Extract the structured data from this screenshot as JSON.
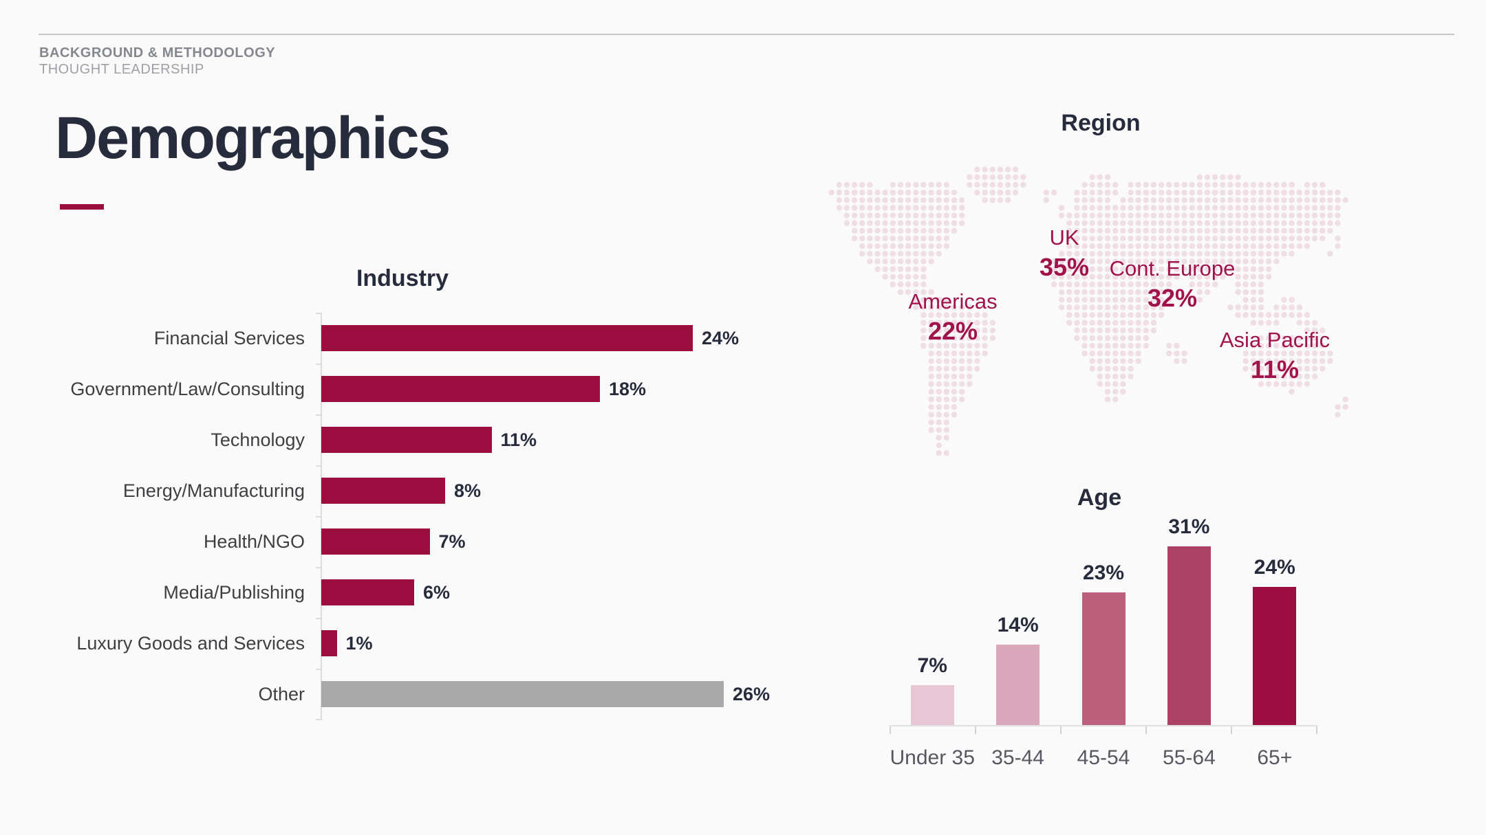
{
  "header": {
    "kicker": "BACKGROUND & METHODOLOGY",
    "subtitle": "THOUGHT LEADERSHIP",
    "title": "Demographics"
  },
  "colors": {
    "background": "#FAFAFA",
    "accent_crimson": "#9C0E40",
    "region_text_crimson": "#A0124A",
    "heading_navy": "#272C3D",
    "other_bar_gray": "#A9A9A9",
    "map_dot_pink": "#F0DEE5",
    "rule_gray": "#C7C8CA"
  },
  "industry": {
    "title": "Industry",
    "bars": [
      {
        "label": "Financial Services",
        "value": 24,
        "display": "24%",
        "color": "#9C0E40"
      },
      {
        "label": "Government/Law/Consulting",
        "value": 18,
        "display": "18%",
        "color": "#9C0E40"
      },
      {
        "label": "Technology",
        "value": 11,
        "display": "11%",
        "color": "#9C0E40"
      },
      {
        "label": "Energy/Manufacturing",
        "value": 8,
        "display": "8%",
        "color": "#9C0E40"
      },
      {
        "label": "Health/NGO",
        "value": 7,
        "display": "7%",
        "color": "#9C0E40"
      },
      {
        "label": "Media/Publishing",
        "value": 6,
        "display": "6%",
        "color": "#9C0E40"
      },
      {
        "label": "Luxury Goods and Services",
        "value": 1,
        "display": "1%",
        "color": "#9C0E40"
      },
      {
        "label": "Other",
        "value": 26,
        "display": "26%",
        "color": "#A9A9A9"
      }
    ]
  },
  "region": {
    "title": "Region",
    "labels": [
      {
        "name": "UK",
        "value": 35,
        "display": "35%"
      },
      {
        "name": "Americas",
        "value": 22,
        "display": "22%"
      },
      {
        "name": "Cont. Europe",
        "value": 32,
        "display": "32%"
      },
      {
        "name": "Asia Pacific",
        "value": 11,
        "display": "11%"
      }
    ],
    "map_rows": [
      [
        [
          19,
          24
        ]
      ],
      [
        [
          18,
          25
        ],
        [
          34,
          36
        ],
        [
          48,
          53
        ]
      ],
      [
        [
          1,
          5
        ],
        [
          8,
          15
        ],
        [
          18,
          25
        ],
        [
          33,
          37
        ],
        [
          39,
          60
        ],
        [
          62,
          64
        ]
      ],
      [
        [
          0,
          16
        ],
        [
          19,
          24
        ],
        [
          28,
          29
        ],
        [
          32,
          37
        ],
        [
          39,
          66
        ]
      ],
      [
        [
          1,
          17
        ],
        [
          20,
          23
        ],
        [
          28,
          28
        ],
        [
          32,
          36
        ],
        [
          38,
          67
        ]
      ],
      [
        [
          1,
          17
        ],
        [
          30,
          30
        ],
        [
          32,
          66
        ]
      ],
      [
        [
          2,
          17
        ],
        [
          30,
          66
        ]
      ],
      [
        [
          2,
          17
        ],
        [
          31,
          66
        ]
      ],
      [
        [
          3,
          16
        ],
        [
          31,
          65
        ]
      ],
      [
        [
          3,
          15
        ],
        [
          31,
          64
        ],
        [
          66,
          66
        ]
      ],
      [
        [
          4,
          15
        ],
        [
          31,
          62
        ],
        [
          66,
          66
        ]
      ],
      [
        [
          4,
          14
        ],
        [
          30,
          60
        ],
        [
          65,
          65
        ]
      ],
      [
        [
          5,
          13
        ],
        [
          29,
          58
        ]
      ],
      [
        [
          6,
          12
        ],
        [
          29,
          57
        ]
      ],
      [
        [
          7,
          12
        ],
        [
          29,
          45
        ],
        [
          47,
          51
        ],
        [
          53,
          57
        ]
      ],
      [
        [
          8,
          12
        ],
        [
          29,
          44
        ],
        [
          47,
          50
        ],
        [
          53,
          56
        ]
      ],
      [
        [
          9,
          13
        ],
        [
          30,
          44
        ],
        [
          48,
          49
        ],
        [
          53,
          56
        ]
      ],
      [
        [
          11,
          15
        ],
        [
          30,
          44
        ],
        [
          48,
          48
        ],
        [
          54,
          56
        ],
        [
          59,
          60
        ]
      ],
      [
        [
          11,
          18
        ],
        [
          30,
          43
        ],
        [
          52,
          56
        ],
        [
          58,
          61
        ]
      ],
      [
        [
          12,
          20
        ],
        [
          31,
          43
        ],
        [
          53,
          62
        ]
      ],
      [
        [
          12,
          21
        ],
        [
          31,
          42
        ],
        [
          55,
          58
        ],
        [
          61,
          63
        ]
      ],
      [
        [
          12,
          21
        ],
        [
          32,
          42
        ],
        [
          62,
          64
        ]
      ],
      [
        [
          12,
          21
        ],
        [
          32,
          41
        ],
        [
          56,
          63
        ]
      ],
      [
        [
          12,
          20
        ],
        [
          33,
          41
        ],
        [
          44,
          45
        ],
        [
          55,
          64
        ]
      ],
      [
        [
          13,
          20
        ],
        [
          33,
          40
        ],
        [
          44,
          46
        ],
        [
          54,
          65
        ]
      ],
      [
        [
          13,
          19
        ],
        [
          34,
          40
        ],
        [
          45,
          46
        ],
        [
          54,
          65
        ]
      ],
      [
        [
          13,
          19
        ],
        [
          34,
          39
        ],
        [
          54,
          64
        ]
      ],
      [
        [
          13,
          18
        ],
        [
          35,
          39
        ],
        [
          55,
          63
        ]
      ],
      [
        [
          13,
          18
        ],
        [
          35,
          38
        ],
        [
          56,
          62
        ]
      ],
      [
        [
          13,
          17
        ],
        [
          36,
          38
        ],
        [
          60,
          60
        ]
      ],
      [
        [
          13,
          17
        ],
        [
          36,
          37
        ],
        [
          67,
          67
        ]
      ],
      [
        [
          13,
          16
        ],
        [
          66,
          67
        ]
      ],
      [
        [
          13,
          16
        ],
        [
          66,
          66
        ]
      ],
      [
        [
          13,
          15
        ]
      ],
      [
        [
          13,
          15
        ]
      ],
      [
        [
          14,
          15
        ]
      ],
      [
        [
          14,
          14
        ]
      ],
      [
        [
          14,
          15
        ]
      ]
    ]
  },
  "age": {
    "title": "Age",
    "bars": [
      {
        "label": "Under 35",
        "value": 7,
        "display": "7%",
        "color": "#E7C7D3"
      },
      {
        "label": "35-44",
        "value": 14,
        "display": "14%",
        "color": "#D9A8BA"
      },
      {
        "label": "45-54",
        "value": 23,
        "display": "23%",
        "color": "#BC607E"
      },
      {
        "label": "55-64",
        "value": 31,
        "display": "31%",
        "color": "#AC4166"
      },
      {
        "label": "65+",
        "value": 24,
        "display": "24%",
        "color": "#9C0E40"
      }
    ]
  },
  "chart_data": [
    {
      "type": "bar",
      "orientation": "horizontal",
      "title": "Industry",
      "categories": [
        "Financial Services",
        "Government/Law/Consulting",
        "Technology",
        "Energy/Manufacturing",
        "Health/NGO",
        "Media/Publishing",
        "Luxury Goods and Services",
        "Other"
      ],
      "values": [
        24,
        18,
        11,
        8,
        7,
        6,
        1,
        26
      ],
      "data_labels": [
        "24%",
        "18%",
        "11%",
        "8%",
        "7%",
        "6%",
        "1%",
        "26%"
      ],
      "bar_colors": [
        "#9C0E40",
        "#9C0E40",
        "#9C0E40",
        "#9C0E40",
        "#9C0E40",
        "#9C0E40",
        "#9C0E40",
        "#A9A9A9"
      ],
      "xlabel": "",
      "ylabel": "",
      "xlim": [
        0,
        26
      ],
      "grid": false,
      "legend": false
    },
    {
      "type": "map",
      "title": "Region",
      "note": "percent labels placed over a dotted world map",
      "points": [
        {
          "label": "Americas",
          "value": 22
        },
        {
          "label": "UK",
          "value": 35
        },
        {
          "label": "Cont. Europe",
          "value": 32
        },
        {
          "label": "Asia Pacific",
          "value": 11
        }
      ]
    },
    {
      "type": "bar",
      "orientation": "vertical",
      "title": "Age",
      "categories": [
        "Under 35",
        "35-44",
        "45-54",
        "55-64",
        "65+"
      ],
      "values": [
        7,
        14,
        23,
        31,
        24
      ],
      "data_labels": [
        "7%",
        "14%",
        "23%",
        "31%",
        "24%"
      ],
      "bar_colors": [
        "#E7C7D3",
        "#D9A8BA",
        "#BC607E",
        "#AC4166",
        "#9C0E40"
      ],
      "xlabel": "",
      "ylabel": "",
      "ylim": [
        0,
        35
      ],
      "grid": false,
      "legend": false
    }
  ]
}
